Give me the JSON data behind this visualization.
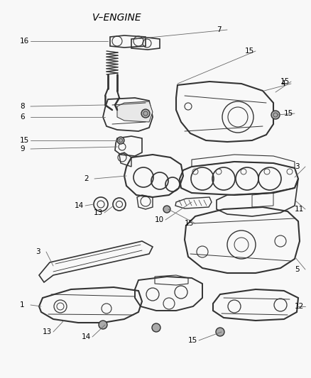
{
  "title": "V–ENGINE",
  "bg_color": "#f5f5f5",
  "line_color": "#333333",
  "text_color": "#000000",
  "title_fontsize": 10,
  "label_fontsize": 7.5,
  "figsize": [
    4.38,
    5.33
  ],
  "dpi": 100,
  "image_bg": "#f5f5f5"
}
